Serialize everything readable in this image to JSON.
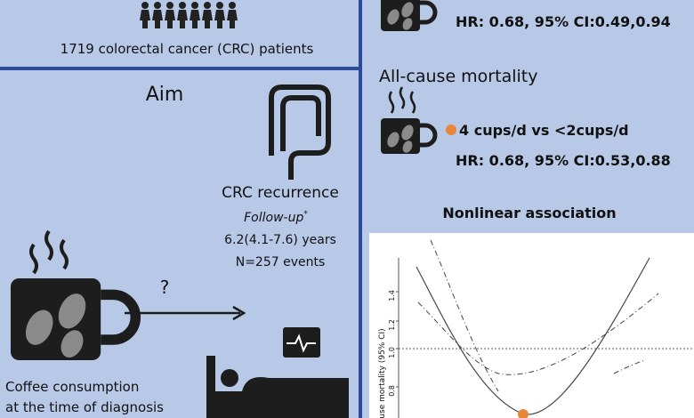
{
  "population": {
    "label": "1719 colorectal cancer (CRC) patients"
  },
  "aim": {
    "title": "Aim",
    "outcome": "CRC recurrence",
    "follow_up": "Follow-up",
    "follow_up_mark": "*",
    "duration": "6.2(4.1-7.6) years",
    "events": "N=257 events",
    "question": "?",
    "exposure_line1": "Coffee consumption",
    "exposure_line2": "at the time of diagnosis"
  },
  "results": {
    "recurrence_hr": "HR: 0.68, 95% CI:0.49,0.94",
    "mortality_title": "All-cause mortality",
    "comparison": "4 cups/d vs <2cups/d",
    "mortality_hr": "HR: 0.68, 95% CI:0.53,0.88"
  },
  "plot": {
    "title": "Nonlinear association",
    "y_label": "use mortality (95% CI)",
    "yticks": [
      "1.4",
      "1.2",
      "1.0",
      "0.8"
    ]
  }
}
